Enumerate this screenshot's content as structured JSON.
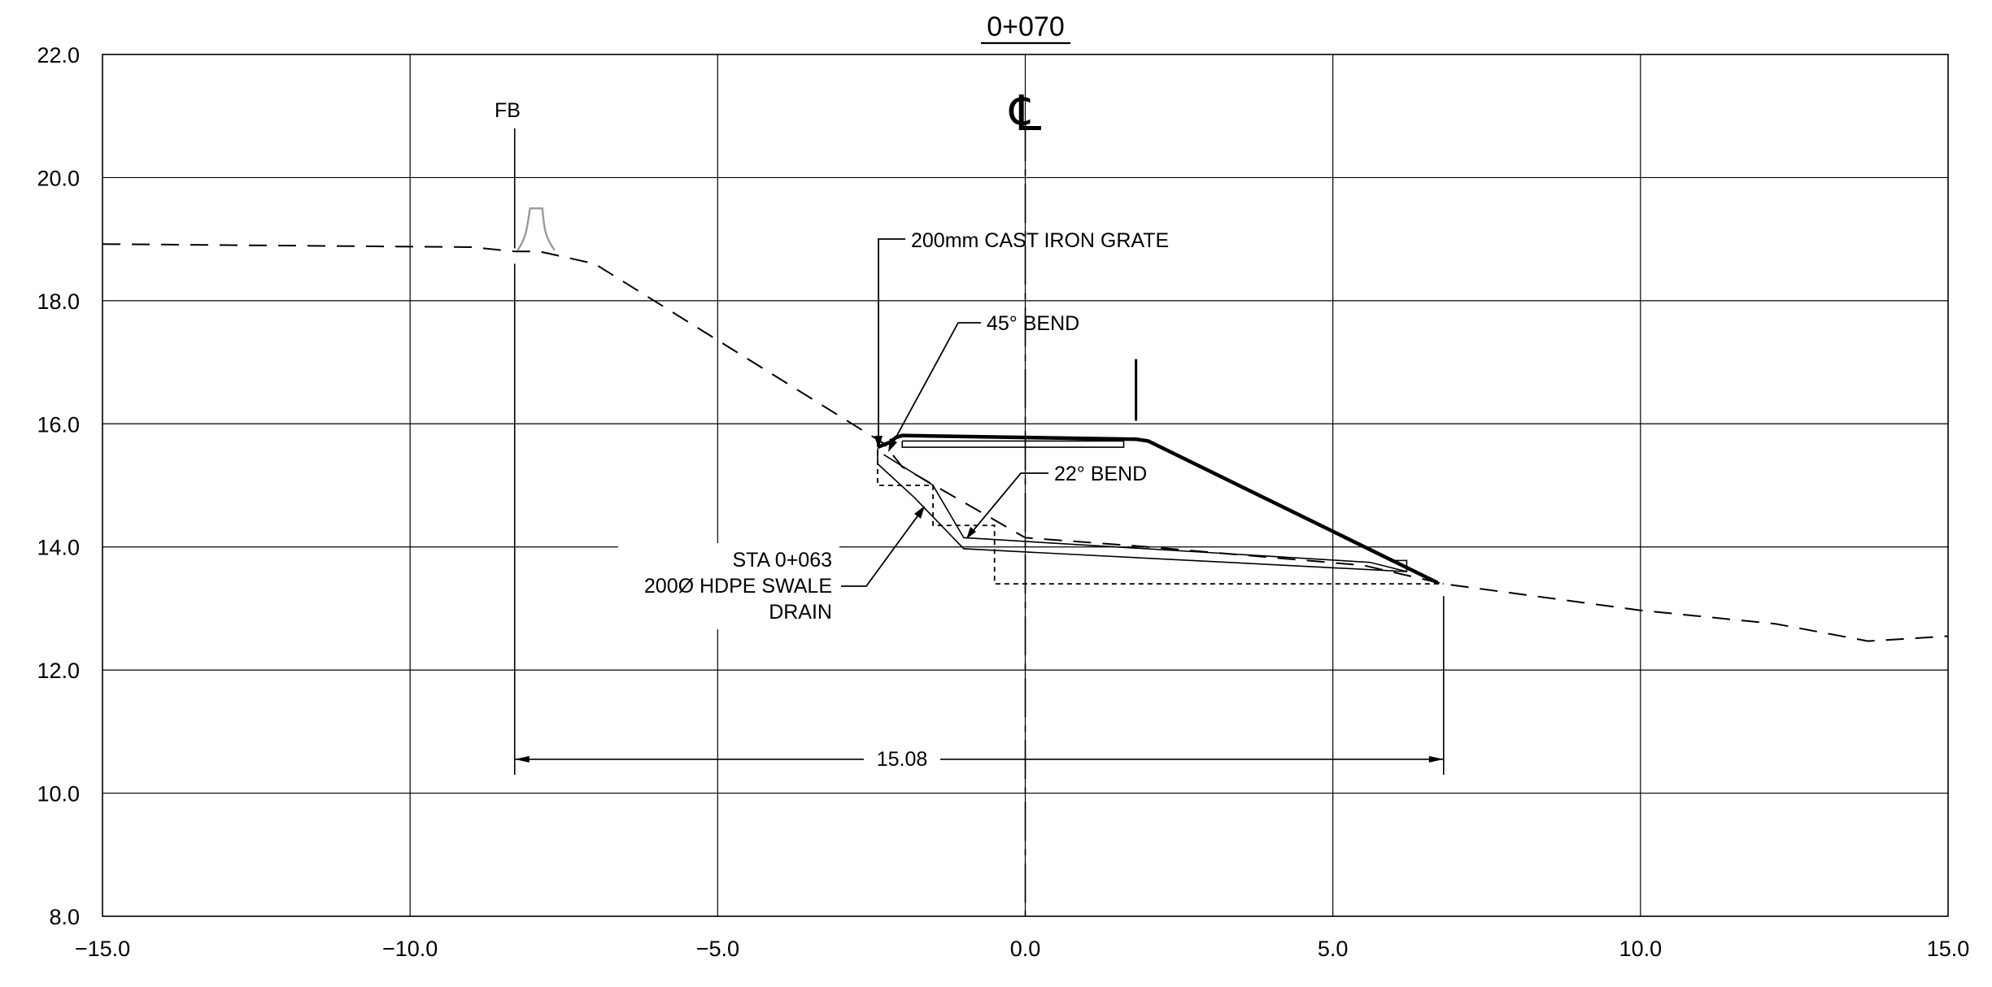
{
  "title": "0+070",
  "centerline_symbol": "℄",
  "fb_label": "FB",
  "dimension_label": "15.08",
  "annotations": {
    "grate": "200mm CAST IRON GRATE",
    "bend45": "45° BEND",
    "bend22": "22° BEND",
    "sta_line1": "STA 0+063",
    "sta_line2": "200Ø HDPE SWALE",
    "sta_line3": "DRAIN"
  },
  "x_ticks": [
    "−15.0",
    "−10.0",
    "−5.0",
    "0.0",
    "5.0",
    "10.0",
    "15.0"
  ],
  "y_ticks": [
    "22.0",
    "20.0",
    "18.0",
    "16.0",
    "14.0",
    "12.0",
    "10.0",
    "8.0"
  ],
  "chart_data": {
    "type": "line",
    "title": "0+070",
    "xlim": [
      -15.0,
      15.0
    ],
    "ylim": [
      8.0,
      22.0
    ],
    "x_tick_values": [
      -15,
      -10,
      -5,
      0,
      5,
      10,
      15
    ],
    "y_tick_values": [
      8,
      10,
      12,
      14,
      16,
      18,
      20,
      22
    ],
    "grid": true,
    "series": [
      {
        "style": "dashed",
        "x": [
          -15.0,
          -9.0,
          -8.3,
          -7.9,
          -7.0,
          -2.3,
          -2.0,
          0.0,
          2.0,
          5.5,
          6.8,
          10.0,
          12.2,
          13.7,
          15.0
        ],
        "y": [
          18.92,
          18.87,
          18.8,
          18.8,
          18.6,
          15.68,
          15.3,
          14.15,
          14.0,
          13.7,
          13.4,
          12.97,
          12.75,
          12.47,
          12.55
        ]
      },
      {
        "style": "bold",
        "x": [
          -2.4,
          -2.2,
          -2.1,
          -2.0,
          1.8,
          2.0,
          6.7
        ],
        "y": [
          15.62,
          15.7,
          15.78,
          15.81,
          15.75,
          15.72,
          13.42
        ]
      }
    ],
    "dimension": {
      "from_x": -8.3,
      "to_x": 6.8,
      "y": 10.55,
      "value": 15.08
    },
    "centerline_x": 0.0,
    "fb_x": -8.3
  }
}
